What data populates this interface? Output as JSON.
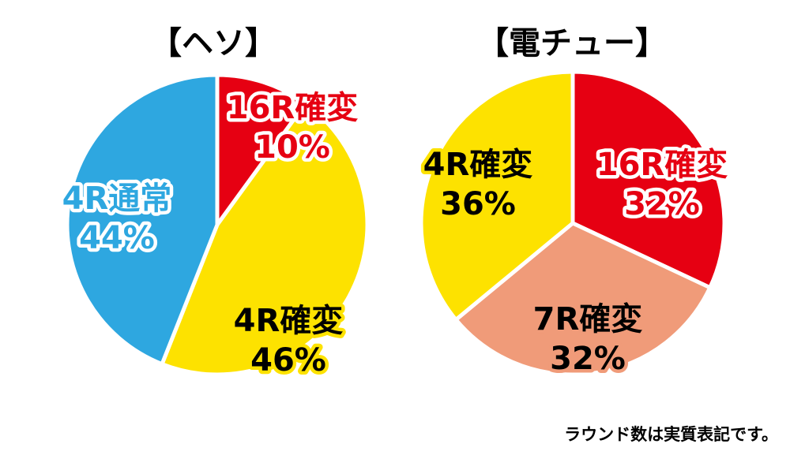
{
  "chart_data": [
    {
      "type": "pie",
      "title": "【ヘソ】",
      "slices": [
        {
          "label": "16R確変",
          "value": 10,
          "value_text": "10%",
          "color": "#e60012",
          "text_color": "#e60012",
          "halo_color": "#ffffff"
        },
        {
          "label": "4R確変",
          "value": 46,
          "value_text": "46%",
          "color": "#fde200",
          "text_color": "#000000",
          "halo_color": "#fde200"
        },
        {
          "label": "4R通常",
          "value": 44,
          "value_text": "44%",
          "color": "#2ea7e0",
          "text_color": "#2ea7e0",
          "halo_color": "#ffffff"
        }
      ]
    },
    {
      "type": "pie",
      "title": "【電チュー】",
      "slices": [
        {
          "label": "16R確変",
          "value": 32,
          "value_text": "32%",
          "color": "#e60012",
          "text_color": "#e60012",
          "halo_color": "#ffffff"
        },
        {
          "label": "7R確変",
          "value": 32,
          "value_text": "32%",
          "color": "#f09b79",
          "text_color": "#000000",
          "halo_color": "#f09b79"
        },
        {
          "label": "4R確変",
          "value": 36,
          "value_text": "36%",
          "color": "#fde200",
          "text_color": "#000000",
          "halo_color": "#fde200"
        }
      ]
    }
  ],
  "footnote": "ラウンド数は実質表記です。"
}
